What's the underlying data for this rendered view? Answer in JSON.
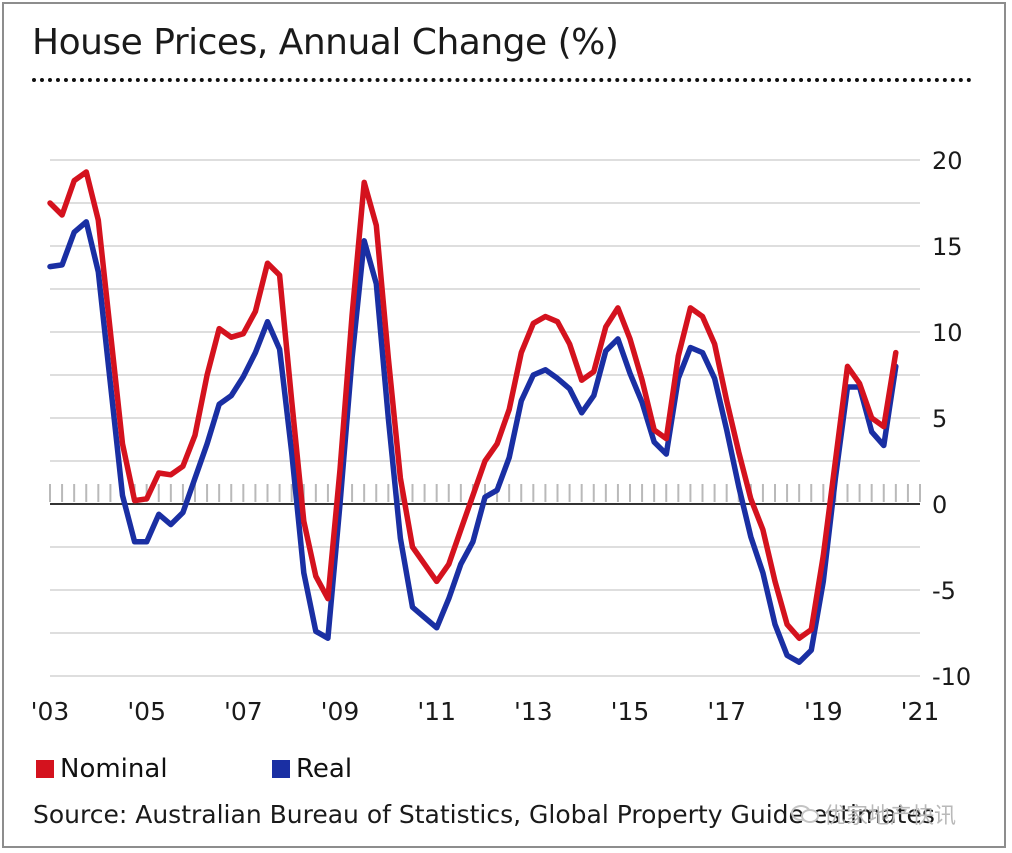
{
  "title": "House Prices, Annual Change (%)",
  "legend": {
    "nominal": "Nominal",
    "real": "Real"
  },
  "source": "Source: Australian Bureau of Statistics, Global Property Guide estimates",
  "watermark": "优家地产快讯",
  "colors": {
    "nominal": "#d4121e",
    "real": "#1a2fa3",
    "grid": "#d4d4d4",
    "zero_line": "#333333",
    "tick": "#b9b9b9"
  },
  "chart_data": {
    "type": "line",
    "title": "House Prices, Annual Change (%)",
    "xlabel": "",
    "ylabel": "",
    "x_start": 2003,
    "x_end": 2021,
    "x_ticks": [
      "'03",
      "'05",
      "'07",
      "'09",
      "'11",
      "'13",
      "'15",
      "'17",
      "'19",
      "'21"
    ],
    "y_ticks": [
      20,
      15,
      10,
      5,
      0,
      -5,
      -10
    ],
    "ylim": [
      -10,
      20
    ],
    "grid": true,
    "legend_position": "bottom-left",
    "series": [
      {
        "name": "Nominal",
        "color": "#d4121e",
        "points": [
          [
            2003.0,
            17.5
          ],
          [
            2003.25,
            16.8
          ],
          [
            2003.5,
            18.8
          ],
          [
            2003.75,
            19.3
          ],
          [
            2004.0,
            16.5
          ],
          [
            2004.25,
            10.0
          ],
          [
            2004.5,
            3.5
          ],
          [
            2004.75,
            0.2
          ],
          [
            2005.0,
            0.3
          ],
          [
            2005.25,
            1.8
          ],
          [
            2005.5,
            1.7
          ],
          [
            2005.75,
            2.2
          ],
          [
            2006.0,
            4.0
          ],
          [
            2006.25,
            7.5
          ],
          [
            2006.5,
            10.2
          ],
          [
            2006.75,
            9.7
          ],
          [
            2007.0,
            9.9
          ],
          [
            2007.25,
            11.2
          ],
          [
            2007.5,
            14.0
          ],
          [
            2007.75,
            13.3
          ],
          [
            2008.0,
            6.0
          ],
          [
            2008.25,
            -1.0
          ],
          [
            2008.5,
            -4.2
          ],
          [
            2008.75,
            -5.5
          ],
          [
            2009.0,
            2.0
          ],
          [
            2009.25,
            11.0
          ],
          [
            2009.5,
            18.7
          ],
          [
            2009.75,
            16.2
          ],
          [
            2010.0,
            8.5
          ],
          [
            2010.25,
            1.5
          ],
          [
            2010.5,
            -2.5
          ],
          [
            2010.75,
            -3.5
          ],
          [
            2011.0,
            -4.5
          ],
          [
            2011.25,
            -3.5
          ],
          [
            2011.5,
            -1.5
          ],
          [
            2011.75,
            0.5
          ],
          [
            2012.0,
            2.5
          ],
          [
            2012.25,
            3.5
          ],
          [
            2012.5,
            5.5
          ],
          [
            2012.75,
            8.8
          ],
          [
            2013.0,
            10.5
          ],
          [
            2013.25,
            10.9
          ],
          [
            2013.5,
            10.6
          ],
          [
            2013.75,
            9.3
          ],
          [
            2014.0,
            7.2
          ],
          [
            2014.25,
            7.7
          ],
          [
            2014.5,
            10.3
          ],
          [
            2014.75,
            11.4
          ],
          [
            2015.0,
            9.6
          ],
          [
            2015.25,
            7.2
          ],
          [
            2015.5,
            4.3
          ],
          [
            2015.75,
            3.8
          ],
          [
            2016.0,
            8.6
          ],
          [
            2016.25,
            11.4
          ],
          [
            2016.5,
            10.9
          ],
          [
            2016.75,
            9.3
          ],
          [
            2017.0,
            6.0
          ],
          [
            2017.25,
            3.0
          ],
          [
            2017.5,
            0.3
          ],
          [
            2017.75,
            -1.5
          ],
          [
            2018.0,
            -4.5
          ],
          [
            2018.25,
            -7.0
          ],
          [
            2018.5,
            -7.8
          ],
          [
            2018.75,
            -7.3
          ],
          [
            2019.0,
            -3.0
          ],
          [
            2019.25,
            2.5
          ],
          [
            2019.5,
            8.0
          ],
          [
            2019.75,
            7.0
          ],
          [
            2020.0,
            5.0
          ],
          [
            2020.25,
            4.5
          ],
          [
            2020.5,
            8.8
          ]
        ]
      },
      {
        "name": "Real",
        "color": "#1a2fa3",
        "points": [
          [
            2003.0,
            13.8
          ],
          [
            2003.25,
            13.9
          ],
          [
            2003.5,
            15.8
          ],
          [
            2003.75,
            16.4
          ],
          [
            2004.0,
            13.5
          ],
          [
            2004.25,
            7.0
          ],
          [
            2004.5,
            0.5
          ],
          [
            2004.75,
            -2.2
          ],
          [
            2005.0,
            -2.2
          ],
          [
            2005.25,
            -0.6
          ],
          [
            2005.5,
            -1.2
          ],
          [
            2005.75,
            -0.5
          ],
          [
            2006.0,
            1.5
          ],
          [
            2006.25,
            3.5
          ],
          [
            2006.5,
            5.8
          ],
          [
            2006.75,
            6.3
          ],
          [
            2007.0,
            7.4
          ],
          [
            2007.25,
            8.8
          ],
          [
            2007.5,
            10.6
          ],
          [
            2007.75,
            9.0
          ],
          [
            2008.0,
            3.0
          ],
          [
            2008.25,
            -4.0
          ],
          [
            2008.5,
            -7.4
          ],
          [
            2008.75,
            -7.8
          ],
          [
            2009.0,
            0.0
          ],
          [
            2009.25,
            8.5
          ],
          [
            2009.5,
            15.3
          ],
          [
            2009.75,
            12.8
          ],
          [
            2010.0,
            5.0
          ],
          [
            2010.25,
            -2.0
          ],
          [
            2010.5,
            -6.0
          ],
          [
            2010.75,
            -6.6
          ],
          [
            2011.0,
            -7.2
          ],
          [
            2011.25,
            -5.5
          ],
          [
            2011.5,
            -3.5
          ],
          [
            2011.75,
            -2.2
          ],
          [
            2012.0,
            0.4
          ],
          [
            2012.25,
            0.8
          ],
          [
            2012.5,
            2.7
          ],
          [
            2012.75,
            6.0
          ],
          [
            2013.0,
            7.5
          ],
          [
            2013.25,
            7.8
          ],
          [
            2013.5,
            7.3
          ],
          [
            2013.75,
            6.7
          ],
          [
            2014.0,
            5.3
          ],
          [
            2014.25,
            6.3
          ],
          [
            2014.5,
            8.9
          ],
          [
            2014.75,
            9.6
          ],
          [
            2015.0,
            7.6
          ],
          [
            2015.25,
            5.9
          ],
          [
            2015.5,
            3.6
          ],
          [
            2015.75,
            2.9
          ],
          [
            2016.0,
            7.3
          ],
          [
            2016.25,
            9.1
          ],
          [
            2016.5,
            8.8
          ],
          [
            2016.75,
            7.3
          ],
          [
            2017.0,
            4.3
          ],
          [
            2017.25,
            1.0
          ],
          [
            2017.5,
            -1.9
          ],
          [
            2017.75,
            -4.0
          ],
          [
            2018.0,
            -7.0
          ],
          [
            2018.25,
            -8.8
          ],
          [
            2018.5,
            -9.2
          ],
          [
            2018.75,
            -8.5
          ],
          [
            2019.0,
            -4.5
          ],
          [
            2019.25,
            1.5
          ],
          [
            2019.5,
            6.8
          ],
          [
            2019.75,
            6.8
          ],
          [
            2020.0,
            4.2
          ],
          [
            2020.25,
            3.4
          ],
          [
            2020.5,
            8.0
          ]
        ]
      }
    ]
  }
}
